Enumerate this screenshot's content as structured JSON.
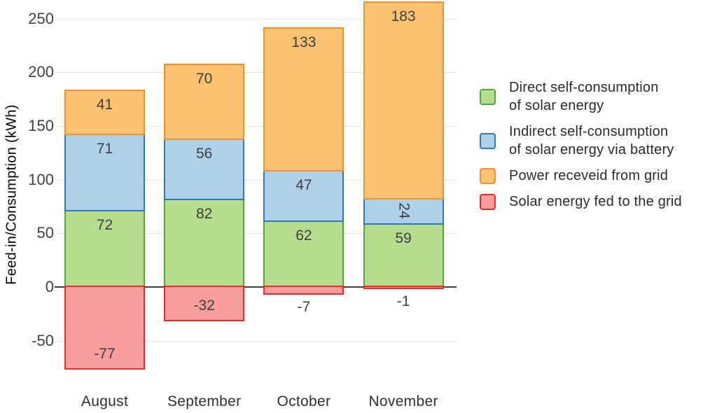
{
  "chart_data": {
    "type": "bar",
    "stacked": true,
    "title": "",
    "xlabel": "",
    "ylabel": "Feed-in/Consumption (kWh)",
    "categories": [
      "August",
      "September",
      "October",
      "November"
    ],
    "series": [
      {
        "name": "Direct self-consumption of solar energy",
        "legend_lines": [
          "Direct self-consumption",
          "of solar energy"
        ],
        "values": [
          72,
          82,
          62,
          59
        ],
        "fill": "#b6dc90",
        "border": "#55a733",
        "label_pos": [
          "inside-end",
          "inside-end",
          "inside-end",
          "inside-end"
        ]
      },
      {
        "name": "Indirect self-consumption of solar energy via battery",
        "legend_lines": [
          "Indirect self-consumption",
          "of solar energy via battery"
        ],
        "values": [
          71,
          56,
          47,
          24
        ],
        "fill": "#aed1e8",
        "border": "#2e78ba",
        "label_pos": [
          "inside-end",
          "inside-end",
          "inside-end",
          "rotated-center"
        ]
      },
      {
        "name": "Power receveid from grid",
        "legend_lines": [
          "Power receveid from grid"
        ],
        "values": [
          41,
          70,
          133,
          183
        ],
        "fill": "#fbc273",
        "border": "#f0922f",
        "label_pos": [
          "inside-end",
          "inside-end",
          "inside-end",
          "inside-end"
        ]
      },
      {
        "name": "Solar energy fed to the grid",
        "legend_lines": [
          "Solar energy fed to the grid"
        ],
        "values": [
          -77,
          -32,
          -7,
          -1
        ],
        "fill": "#f79d9d",
        "border": "#eb2b27",
        "label_pos": [
          "inside-end",
          "inside-end",
          "outside-end",
          "outside-end"
        ]
      }
    ],
    "yticks": [
      250,
      200,
      150,
      100,
      50,
      0,
      -50
    ],
    "ylim": [
      -77,
      266
    ],
    "grid": true,
    "legend_position": "right",
    "colors": {
      "gridline": "#e4e4e4",
      "zero_axis": "#3f3f3f",
      "tick_text": "#3f3f3f",
      "bar_label_text": "#3f3f3f",
      "category_text": "#2f2f2f",
      "legend_text": "#2b2b2b",
      "axis_title_text": "#3f3f3f"
    }
  }
}
